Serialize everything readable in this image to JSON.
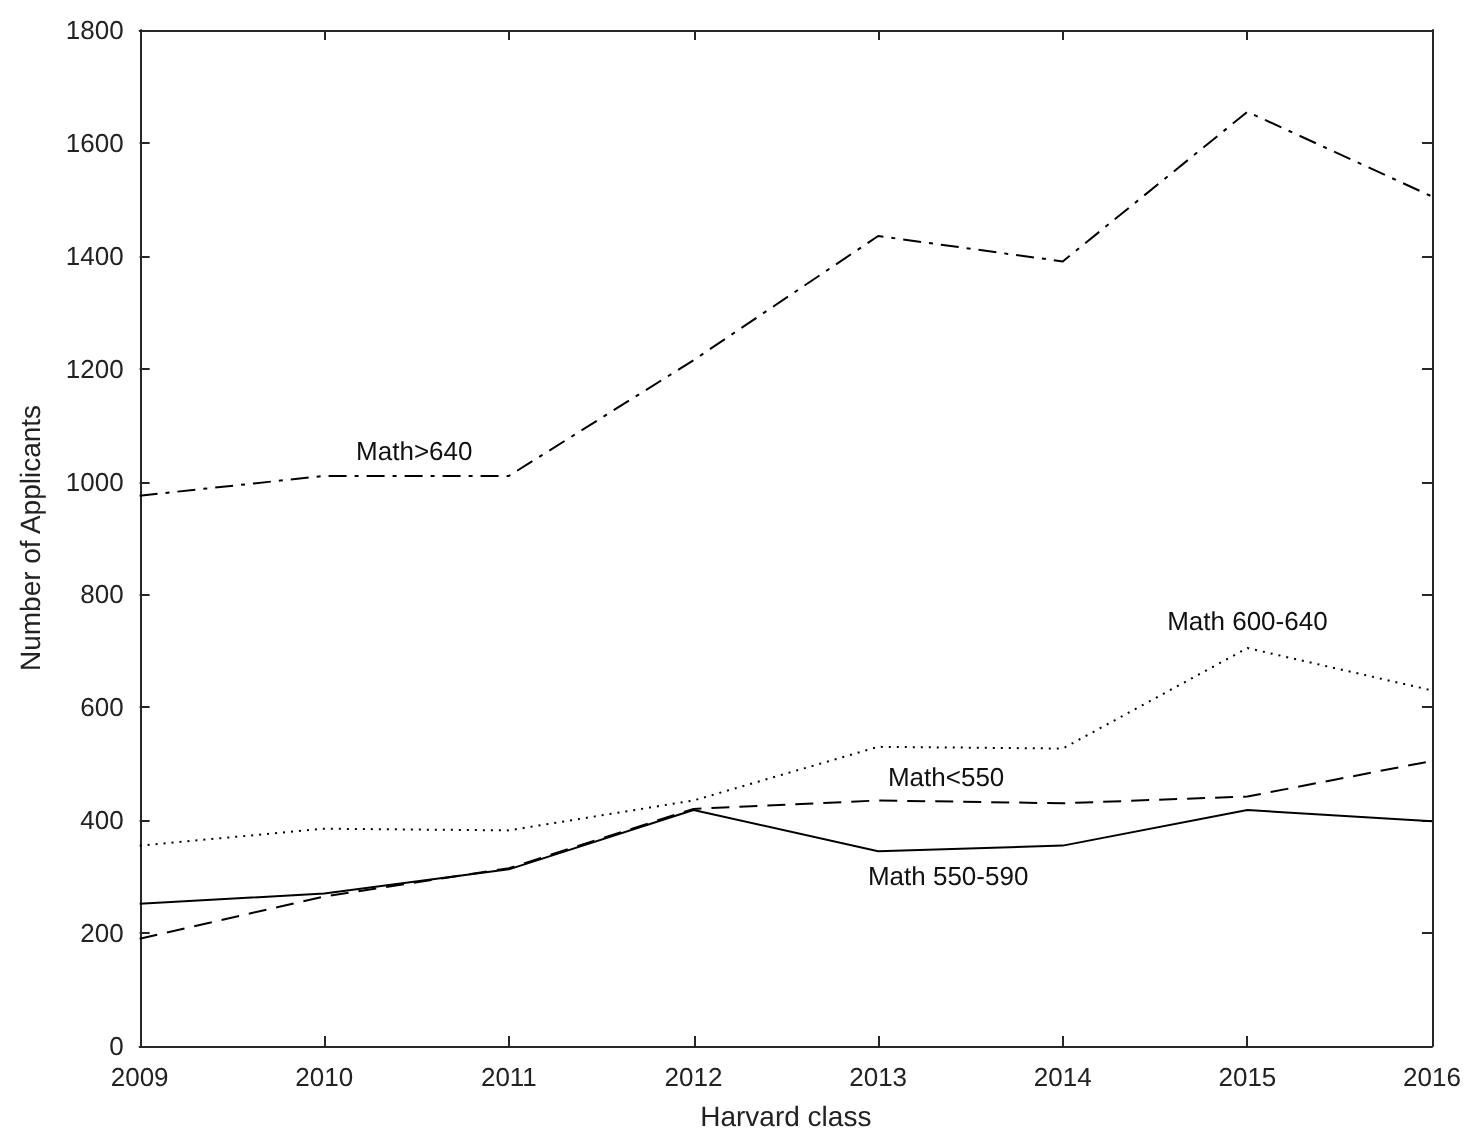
{
  "chart_data": {
    "type": "line",
    "xlabel": "Harvard class",
    "ylabel": "Number of Applicants",
    "x": [
      2009,
      2010,
      2011,
      2012,
      2013,
      2014,
      2015,
      2016
    ],
    "series": [
      {
        "name": "Math>640",
        "color": "#000000",
        "line_style": "dashdot",
        "values": [
          975,
          1010,
          1010,
          1215,
          1435,
          1390,
          1655,
          1505
        ]
      },
      {
        "name": "Math 600-640",
        "color": "#000000",
        "line_style": "dotted",
        "values": [
          355,
          385,
          382,
          435,
          530,
          527,
          705,
          630
        ]
      },
      {
        "name": "Math<550",
        "color": "#000000",
        "line_style": "dashed",
        "values": [
          190,
          265,
          315,
          420,
          435,
          430,
          442,
          505
        ]
      },
      {
        "name": "Math 550-590",
        "color": "#000000",
        "line_style": "solid",
        "values": [
          252,
          270,
          313,
          418,
          345,
          355,
          418,
          398
        ]
      }
    ],
    "xlim": [
      2009,
      2016
    ],
    "xticks": [
      2009,
      2010,
      2011,
      2012,
      2013,
      2014,
      2015,
      2016
    ],
    "ylim": [
      0,
      1800
    ],
    "yticks": [
      0,
      200,
      400,
      600,
      800,
      1000,
      1200,
      1400,
      1600,
      1800
    ],
    "grid": false,
    "legend": false,
    "marker": "none"
  }
}
